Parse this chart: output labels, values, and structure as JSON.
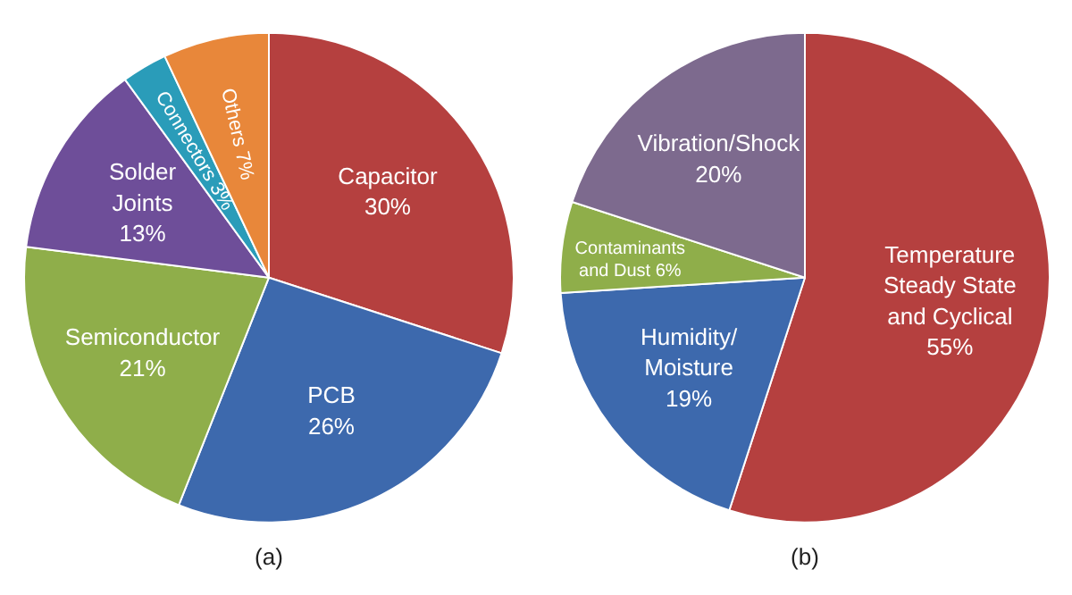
{
  "chart_data": [
    {
      "type": "pie",
      "xlabel": "(a)",
      "categories": [
        "Capacitor",
        "PCB",
        "Semiconductor",
        "Solder\nJoints",
        "Connectors",
        "Others"
      ],
      "values": [
        30,
        26,
        21,
        13,
        3,
        7
      ],
      "value_labels": [
        "30%",
        "26%",
        "21%",
        "13%",
        "3%",
        "7%"
      ],
      "colors": [
        "#b5403f",
        "#3d69ad",
        "#8fae4a",
        "#6e4e99",
        "#2a9cb9",
        "#e8873a"
      ]
    },
    {
      "type": "pie",
      "xlabel": "(b)",
      "categories": [
        "Temperature\nSteady State\nand Cyclical",
        "Humidity/\nMoisture",
        "Contaminants\nand Dust",
        "Vibration/Shock"
      ],
      "values": [
        55,
        19,
        6,
        20
      ],
      "value_labels": [
        "55%",
        "19%",
        "6%",
        "20%"
      ],
      "colors": [
        "#b5403f",
        "#3d69ad",
        "#8fae4a",
        "#7d6a8e"
      ]
    }
  ]
}
